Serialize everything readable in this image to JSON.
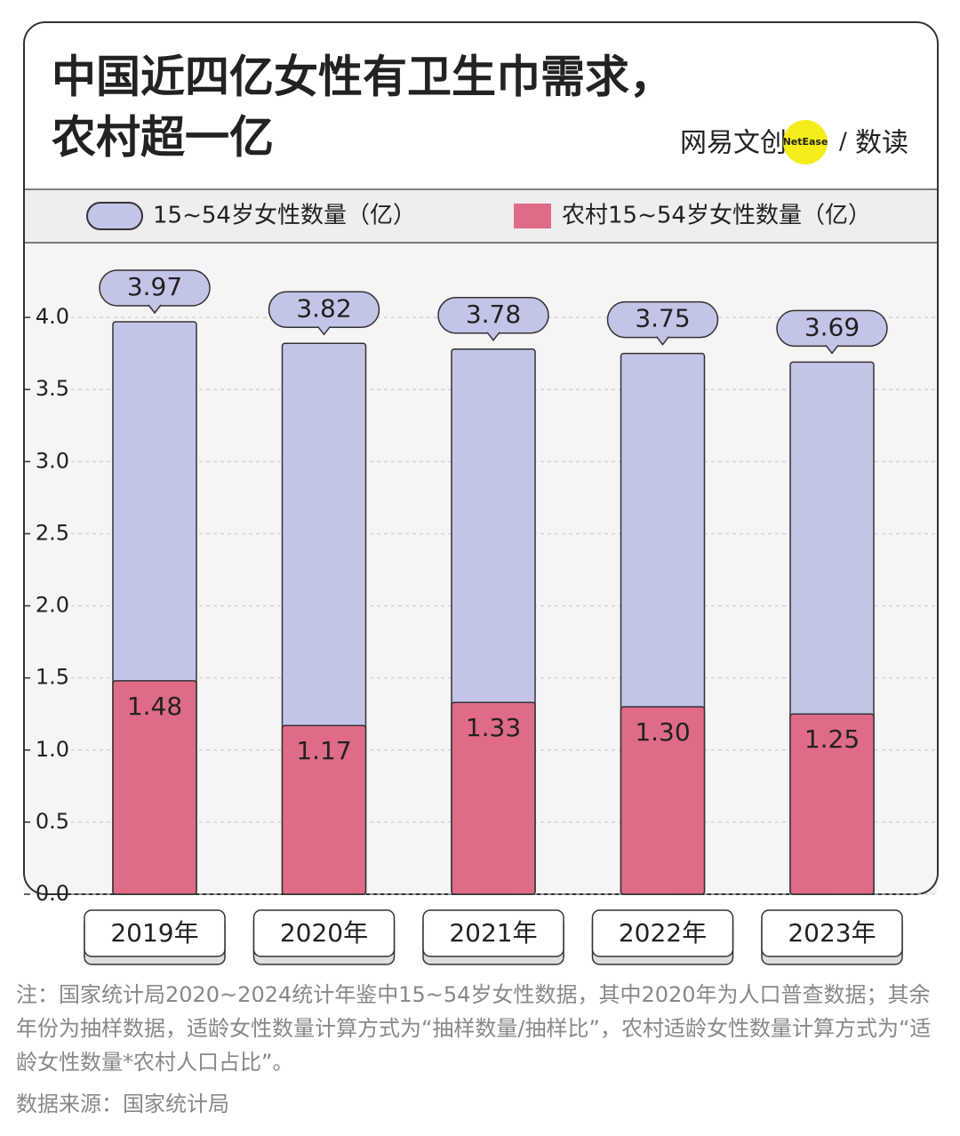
{
  "chart_data": {
    "type": "bar",
    "title": [
      "中国近四亿女性有卫生巾需求，",
      "农村超一亿"
    ],
    "logo": {
      "brand": "网易文创",
      "badge": "NetEase",
      "separator": "/",
      "section": "数读"
    },
    "categories": [
      "2019年",
      "2020年",
      "2021年",
      "2022年",
      "2023年"
    ],
    "series": [
      {
        "name": "15~54岁女性数量（亿）",
        "color": "#c3c5e8",
        "values": [
          3.97,
          3.82,
          3.78,
          3.75,
          3.69
        ]
      },
      {
        "name": "农村15~54岁女性数量（亿）",
        "color": "#e06b87",
        "values": [
          1.48,
          1.17,
          1.33,
          1.3,
          1.25
        ],
        "value_labels": [
          "1.48",
          "1.17",
          "1.33",
          "1.30",
          "1.25"
        ]
      }
    ],
    "ylim": [
      0,
      4.5
    ],
    "yticks": [
      {
        "value": 0,
        "label": "0.0"
      },
      0.5,
      {
        "value": 1,
        "label": "1.0"
      },
      1.5,
      {
        "value": 2,
        "label": "2.0"
      },
      2.5,
      {
        "value": 3,
        "label": "3.0"
      },
      3.5,
      {
        "value": 4,
        "label": "4.0"
      }
    ],
    "grid": true,
    "note": "注：国家统计局2020~2024统计年鉴中15~54岁女性数据，其中2020年为人口普查数据；其余年份为抽样数据，适龄女性数量计算方式为“抽样数量/抽样比”，农村适龄女性数量计算方式为“适龄女性数量*农村人口占比”。",
    "source": "数据来源：国家统计局"
  }
}
